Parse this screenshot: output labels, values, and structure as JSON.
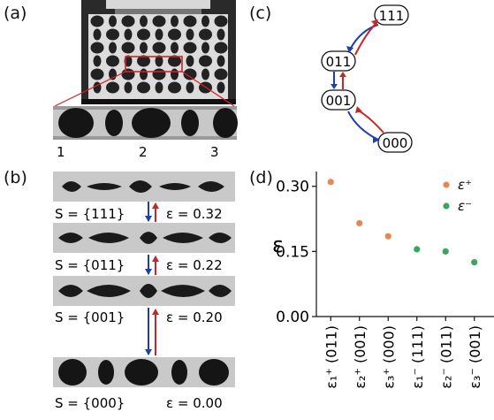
{
  "panel_labels": {
    "a": "(a)",
    "b": "(b)",
    "c": "(c)",
    "d": "(d)"
  },
  "panel_a": {
    "cell_numbers": [
      "1",
      "2",
      "3"
    ]
  },
  "panel_b": {
    "rows": [
      {
        "state": "S = {111}",
        "strain": "ε = 0.32"
      },
      {
        "state": "S = {011}",
        "strain": "ε = 0.22"
      },
      {
        "state": "S = {001}",
        "strain": "ε = 0.20"
      },
      {
        "state": "S = {000}",
        "strain": "ε = 0.00"
      }
    ]
  },
  "panel_c": {
    "nodes": [
      "111",
      "011",
      "001",
      "000"
    ],
    "colors": {
      "up": "#c62828",
      "down": "#1e3fae"
    }
  },
  "chart_data": {
    "type": "scatter",
    "ylabel": "ε",
    "ylim": [
      0,
      0.33
    ],
    "yticks": [
      "0.00",
      "0.15",
      "0.30"
    ],
    "ytick_values": [
      0,
      0.15,
      0.3
    ],
    "categories": [
      "ε₁⁺ (011)",
      "ε₂⁺ (001)",
      "ε₃⁺ (000)",
      "ε₁⁻ (111)",
      "ε₂⁻ (011)",
      "ε₃⁻ (001)"
    ],
    "series": [
      {
        "name": "ε⁺",
        "color": "#e8884c",
        "values": [
          0.31,
          0.215,
          0.185,
          null,
          null,
          null
        ]
      },
      {
        "name": "ε⁻",
        "color": "#3aa660",
        "values": [
          null,
          null,
          null,
          0.155,
          0.15,
          0.125
        ]
      }
    ],
    "legend": "top-right",
    "grid": false
  }
}
